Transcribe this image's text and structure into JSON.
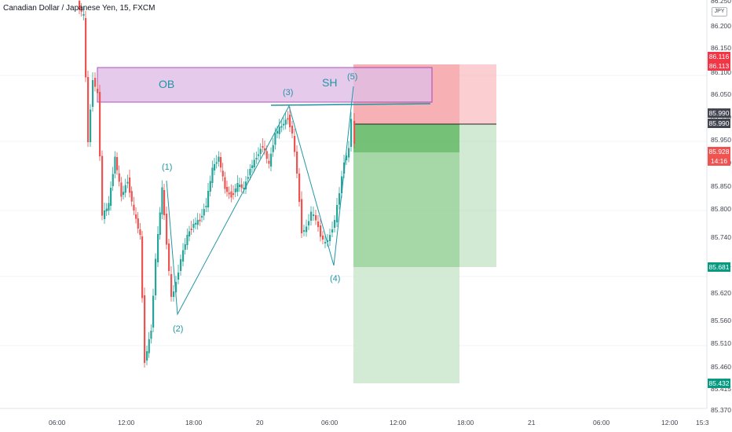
{
  "header": {
    "symbol_title": "Canadian Dollar / Japanese Yen, 15, FXCM"
  },
  "price_scale": {
    "currency_badge": "JPY",
    "ticks": [
      "86.250",
      "86.200",
      "86.150",
      "86.100",
      "86.050",
      "85.990",
      "85.950",
      "85.890",
      "85.850",
      "85.800",
      "85.740",
      "85.681",
      "85.620",
      "85.560",
      "85.510",
      "85.460",
      "85.415",
      "85.370"
    ],
    "tags": {
      "tp_upper": "86.116",
      "stop_loss": "86.113",
      "entry_1": "85.990",
      "entry_2": "85.990",
      "last_price": "85.928",
      "countdown": "14:16",
      "take_profit_1": "85.681",
      "take_profit_2": "85.432"
    }
  },
  "time_axis": {
    "labels": [
      "06:00",
      "12:00",
      "18:00",
      "20",
      "06:00",
      "12:00",
      "18:00",
      "21",
      "06:00",
      "12:00",
      "15:3"
    ]
  },
  "annotations": {
    "ob_label": "OB",
    "sh_label": "SH",
    "wave_1": "(1)",
    "wave_2": "(2)",
    "wave_3": "(3)",
    "wave_4": "(4)",
    "wave_5": "(5)"
  },
  "colors": {
    "up_candle": "#26a69a",
    "down_candle": "#ef5350",
    "ob_fill": "#e1bee7",
    "ob_border": "#9c27b0",
    "wave_line": "#2196a3",
    "stop_zone": "#f28b91",
    "profit_zone": "#81c784"
  }
}
